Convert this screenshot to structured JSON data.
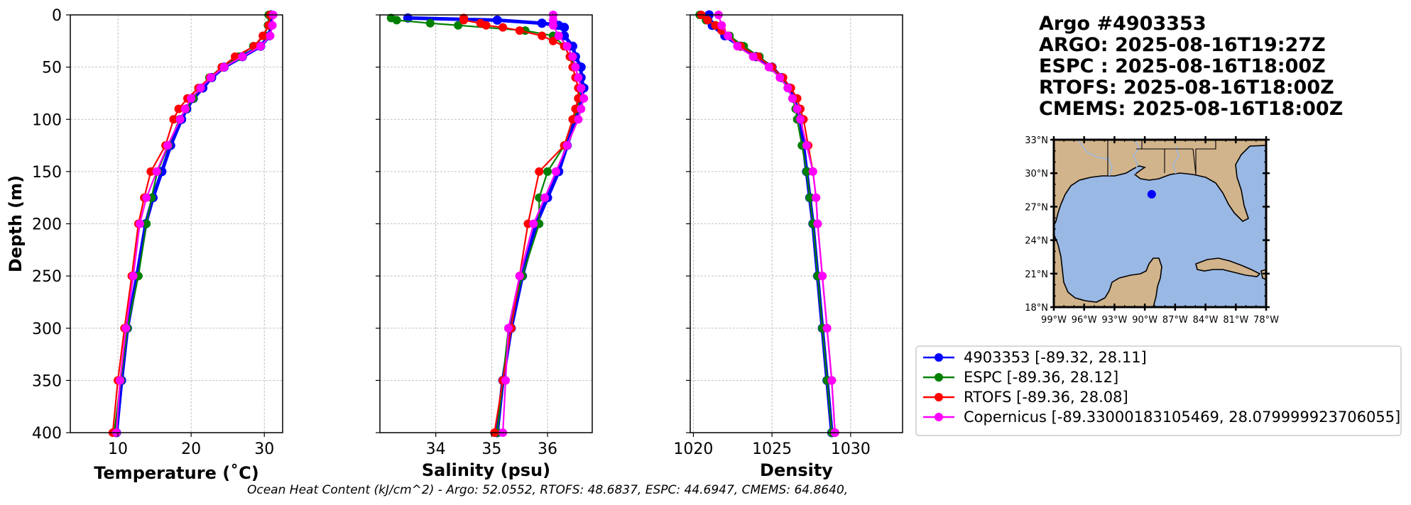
{
  "info": {
    "title": "Argo #4903353",
    "argo_time": "ARGO: 2025-08-16T19:27Z",
    "espc_time": "ESPC : 2025-08-16T18:00Z",
    "rtofs_time": "RTOFS: 2025-08-16T18:00Z",
    "cmems_time": "CMEMS: 2025-08-16T18:00Z"
  },
  "caption": "Ocean Heat Content (kJ/cm^2) - Argo: 52.0552,  RTOFS: 48.6837,  ESPC: 44.6947,  CMEMS: 64.8640,",
  "legend": [
    {
      "label": "4903353 [-89.32, 28.11]",
      "color": "#0000ff"
    },
    {
      "label": "ESPC [-89.36, 28.12]",
      "color": "#008000"
    },
    {
      "label": "RTOFS [-89.36, 28.08]",
      "color": "#ff0000"
    },
    {
      "label": "Copernicus [-89.33000183105469, 28.079999923706055]",
      "color": "#ff00ff"
    }
  ],
  "map": {
    "lat_labels": [
      "33°N",
      "30°N",
      "27°N",
      "24°N",
      "21°N",
      "18°N"
    ],
    "lon_labels": [
      "99°W",
      "96°W",
      "93°W",
      "90°W",
      "87°W",
      "84°W",
      "81°W",
      "78°W"
    ],
    "float_lon": -89.32,
    "float_lat": 28.11,
    "float_color": "#0000ff",
    "land_color": "#d2b48c",
    "ocean_color": "#9ab8e4"
  },
  "chart_data": [
    {
      "type": "line",
      "name": "temperature",
      "xlabel": "Temperature (˚C)",
      "ylabel": "Depth (m)",
      "xlim": [
        3.5,
        32.5
      ],
      "ylim": [
        400,
        0
      ],
      "xticks": [
        10,
        20,
        30
      ],
      "yticks": [
        0,
        50,
        100,
        150,
        200,
        250,
        300,
        350,
        400
      ],
      "grid": true,
      "series": [
        {
          "name": "4903353",
          "color": "#0000ff",
          "depth": [
            0,
            10,
            20,
            30,
            40,
            50,
            60,
            70,
            80,
            90,
            100,
            125,
            150,
            175,
            200,
            250,
            300,
            350,
            400
          ],
          "values": [
            30.9,
            30.9,
            30.7,
            29.5,
            27.0,
            24.5,
            22.8,
            21.6,
            20.3,
            19.4,
            18.7,
            17.2,
            16.0,
            14.8,
            13.8,
            12.6,
            11.3,
            10.5,
            9.8
          ]
        },
        {
          "name": "ESPC",
          "color": "#008000",
          "depth": [
            0,
            10,
            20,
            30,
            40,
            50,
            60,
            70,
            80,
            90,
            100,
            125,
            150,
            175,
            200,
            250,
            300,
            350,
            400
          ],
          "values": [
            30.6,
            30.5,
            30.0,
            28.5,
            26.5,
            24.2,
            22.5,
            21.2,
            20.3,
            19.3,
            18.4,
            16.9,
            15.4,
            14.6,
            13.9,
            12.8,
            11.3,
            10.4,
            9.5
          ]
        },
        {
          "name": "RTOFS",
          "color": "#ff0000",
          "depth": [
            0,
            10,
            20,
            30,
            40,
            50,
            60,
            70,
            80,
            90,
            100,
            125,
            150,
            175,
            200,
            250,
            300,
            350,
            400
          ],
          "values": [
            30.8,
            30.6,
            29.8,
            28.6,
            26.0,
            24.2,
            22.6,
            21.0,
            19.5,
            18.3,
            17.6,
            16.5,
            14.5,
            13.6,
            12.8,
            11.9,
            10.9,
            10.0,
            9.3
          ]
        },
        {
          "name": "Copernicus",
          "color": "#ff00ff",
          "depth": [
            0,
            10,
            20,
            30,
            40,
            50,
            60,
            70,
            80,
            90,
            100,
            125,
            150,
            175,
            200,
            250,
            300,
            350,
            400
          ],
          "values": [
            31.2,
            31.1,
            30.8,
            29.5,
            27.0,
            24.5,
            22.7,
            21.3,
            20.0,
            19.2,
            18.5,
            16.8,
            15.3,
            13.9,
            13.0,
            12.1,
            11.1,
            10.3,
            9.8
          ]
        }
      ]
    },
    {
      "type": "line",
      "name": "salinity",
      "xlabel": "Salinity (psu)",
      "xlim": [
        33.0,
        36.8
      ],
      "ylim": [
        400,
        0
      ],
      "xticks": [
        34,
        35,
        36
      ],
      "yticks": [
        0,
        50,
        100,
        150,
        200,
        250,
        300,
        350,
        400
      ],
      "grid": true,
      "series": [
        {
          "name": "4903353",
          "color": "#0000ff",
          "depth": [
            3,
            5,
            8,
            10,
            12,
            20,
            30,
            40,
            50,
            60,
            70,
            80,
            90,
            100,
            125,
            150,
            175,
            200,
            250,
            300,
            350,
            400
          ],
          "values": [
            33.5,
            35.1,
            35.9,
            36.2,
            36.3,
            36.3,
            36.45,
            36.5,
            36.6,
            36.6,
            36.65,
            36.6,
            36.55,
            36.5,
            36.35,
            36.2,
            36.0,
            35.8,
            35.55,
            35.35,
            35.2,
            35.1
          ]
        },
        {
          "name": "ESPC",
          "color": "#008000",
          "depth": [
            3,
            5,
            8,
            10,
            15,
            20,
            30,
            40,
            50,
            60,
            70,
            80,
            90,
            100,
            125,
            150,
            175,
            200,
            250,
            300,
            350,
            400
          ],
          "values": [
            33.2,
            33.3,
            33.9,
            34.4,
            35.6,
            36.1,
            36.3,
            36.4,
            36.5,
            36.55,
            36.6,
            36.55,
            36.55,
            36.45,
            36.3,
            36.0,
            35.85,
            35.85,
            35.55,
            35.3,
            35.2,
            35.1
          ]
        },
        {
          "name": "RTOFS",
          "color": "#ff0000",
          "depth": [
            3,
            5,
            8,
            10,
            12,
            15,
            20,
            25,
            30,
            40,
            50,
            60,
            70,
            80,
            90,
            100,
            125,
            150,
            200,
            250,
            300,
            350,
            400
          ],
          "values": [
            34.5,
            34.5,
            34.8,
            34.9,
            35.2,
            35.5,
            35.9,
            36.1,
            36.3,
            36.4,
            36.45,
            36.5,
            36.55,
            36.55,
            36.5,
            36.45,
            36.3,
            35.85,
            35.65,
            35.5,
            35.35,
            35.2,
            35.05
          ]
        },
        {
          "name": "Copernicus",
          "color": "#ff00ff",
          "depth": [
            0,
            5,
            10,
            20,
            30,
            40,
            50,
            60,
            70,
            80,
            90,
            100,
            125,
            150,
            175,
            200,
            250,
            300,
            350,
            400
          ],
          "values": [
            36.1,
            36.1,
            36.1,
            36.2,
            36.35,
            36.45,
            36.5,
            36.55,
            36.6,
            36.65,
            36.6,
            36.55,
            36.35,
            36.15,
            35.95,
            35.75,
            35.5,
            35.3,
            35.25,
            35.2
          ]
        }
      ]
    },
    {
      "type": "line",
      "name": "density",
      "xlabel": "Density",
      "xlim": [
        1019.8,
        1033.3
      ],
      "ylim": [
        400,
        0
      ],
      "xticks": [
        1020,
        1025,
        1030
      ],
      "yticks": [
        0,
        50,
        100,
        150,
        200,
        250,
        300,
        350,
        400
      ],
      "grid": true,
      "series": [
        {
          "name": "4903353",
          "color": "#0000ff",
          "depth": [
            0,
            10,
            20,
            30,
            40,
            50,
            60,
            70,
            80,
            90,
            100,
            125,
            150,
            175,
            200,
            250,
            300,
            350,
            400
          ],
          "values": [
            1021.0,
            1021.2,
            1022.0,
            1023.0,
            1024.0,
            1025.0,
            1025.6,
            1026.1,
            1026.4,
            1026.6,
            1026.8,
            1027.0,
            1027.2,
            1027.4,
            1027.6,
            1027.9,
            1028.2,
            1028.5,
            1028.8
          ]
        },
        {
          "name": "ESPC",
          "color": "#008000",
          "depth": [
            0,
            5,
            10,
            20,
            30,
            40,
            50,
            60,
            70,
            80,
            90,
            100,
            125,
            150,
            175,
            200,
            250,
            300,
            350,
            400
          ],
          "values": [
            1020.4,
            1020.8,
            1021.4,
            1022.3,
            1023.2,
            1024.2,
            1025.0,
            1025.6,
            1026.0,
            1026.3,
            1026.5,
            1026.6,
            1026.9,
            1027.2,
            1027.4,
            1027.6,
            1027.9,
            1028.2,
            1028.5,
            1028.8
          ]
        },
        {
          "name": "RTOFS",
          "color": "#ff0000",
          "depth": [
            0,
            5,
            10,
            15,
            20,
            30,
            40,
            50,
            60,
            70,
            80,
            90,
            100,
            125,
            150,
            175,
            200,
            250,
            300,
            350,
            400
          ],
          "values": [
            1020.5,
            1020.9,
            1021.4,
            1021.8,
            1022.2,
            1023.0,
            1024.1,
            1025.0,
            1025.7,
            1026.2,
            1026.6,
            1026.8,
            1027.0,
            1027.3,
            1027.6,
            1027.8,
            1027.9,
            1028.2,
            1028.5,
            1028.8,
            1029.0
          ]
        },
        {
          "name": "Copernicus",
          "color": "#ff00ff",
          "depth": [
            0,
            10,
            20,
            30,
            40,
            50,
            60,
            70,
            80,
            90,
            100,
            125,
            150,
            175,
            200,
            250,
            300,
            350,
            400
          ],
          "values": [
            1021.6,
            1021.8,
            1022.2,
            1022.8,
            1023.8,
            1024.8,
            1025.5,
            1026.0,
            1026.3,
            1026.6,
            1026.8,
            1027.2,
            1027.6,
            1027.8,
            1027.9,
            1028.2,
            1028.5,
            1028.8,
            1029.0
          ]
        }
      ]
    }
  ]
}
